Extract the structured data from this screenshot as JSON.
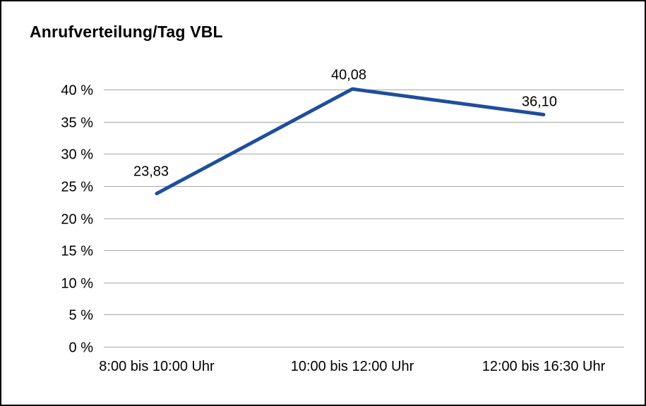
{
  "chart": {
    "title": "Anrufverteilung/Tag VBL"
  },
  "chart_data": {
    "type": "line",
    "title": "Anrufverteilung/Tag VBL",
    "categories": [
      "8:00 bis 10:00 Uhr",
      "10:00 bis 12:00 Uhr",
      "12:00 bis 16:30 Uhr"
    ],
    "values": [
      23.83,
      40.08,
      36.1
    ],
    "value_labels": [
      "23,83",
      "40,08",
      "36,10"
    ],
    "xlabel": "",
    "ylabel": "",
    "ylim": [
      0,
      40
    ],
    "ytick_step": 5,
    "ytick_suffix": " %",
    "grid": true,
    "legend": false,
    "line_color": "#1F4E9C",
    "gridline_color": "#a6a6a6",
    "text_color": "#000000"
  }
}
